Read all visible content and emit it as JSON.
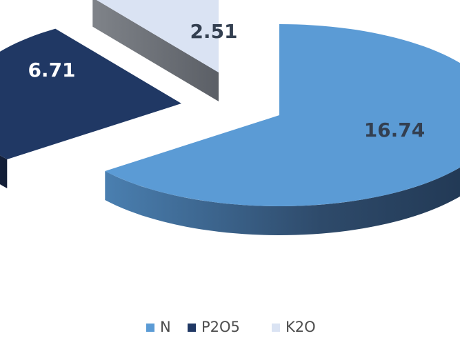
{
  "chart_data": {
    "type": "pie",
    "style": "3d-exploded",
    "legend_position": "bottom",
    "categories": [
      "N",
      "P2O5",
      "K2O"
    ],
    "values": [
      16.74,
      6.71,
      2.51
    ],
    "colors": [
      "#5b9bd5",
      "#203864",
      "#dae3f3"
    ],
    "label_colors": [
      "#333f50",
      "#ffffff",
      "#333f50"
    ]
  }
}
